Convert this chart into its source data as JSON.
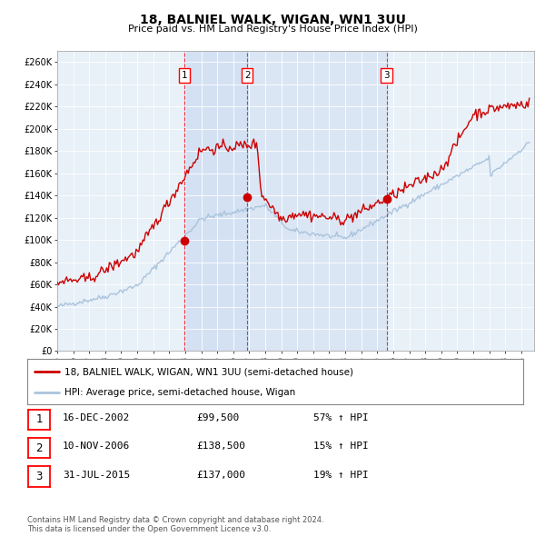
{
  "title": "18, BALNIEL WALK, WIGAN, WN1 3UU",
  "subtitle": "Price paid vs. HM Land Registry's House Price Index (HPI)",
  "ylim": [
    0,
    270000
  ],
  "yticks": [
    0,
    20000,
    40000,
    60000,
    80000,
    100000,
    120000,
    140000,
    160000,
    180000,
    200000,
    220000,
    240000,
    260000
  ],
  "ytick_labels": [
    "£0",
    "£20K",
    "£40K",
    "£60K",
    "£80K",
    "£100K",
    "£120K",
    "£140K",
    "£160K",
    "£180K",
    "£200K",
    "£220K",
    "£240K",
    "£260K"
  ],
  "hpi_color": "#aac4dd",
  "price_color": "#cc0000",
  "sale_marker_color": "#cc0000",
  "plot_bg": "#e8f0f8",
  "sale1_date": 2002.96,
  "sale1_price": 99500,
  "sale2_date": 2006.87,
  "sale2_price": 138500,
  "sale3_date": 2015.58,
  "sale3_price": 137000,
  "legend_label_price": "18, BALNIEL WALK, WIGAN, WN1 3UU (semi-detached house)",
  "legend_label_hpi": "HPI: Average price, semi-detached house, Wigan",
  "table_rows": [
    {
      "num": 1,
      "date": "16-DEC-2002",
      "price": "£99,500",
      "change": "57% ↑ HPI"
    },
    {
      "num": 2,
      "date": "10-NOV-2006",
      "price": "£138,500",
      "change": "15% ↑ HPI"
    },
    {
      "num": 3,
      "date": "31-JUL-2015",
      "price": "£137,000",
      "change": "19% ↑ HPI"
    }
  ],
  "footnote": "Contains HM Land Registry data © Crown copyright and database right 2024.\nThis data is licensed under the Open Government Licence v3.0."
}
